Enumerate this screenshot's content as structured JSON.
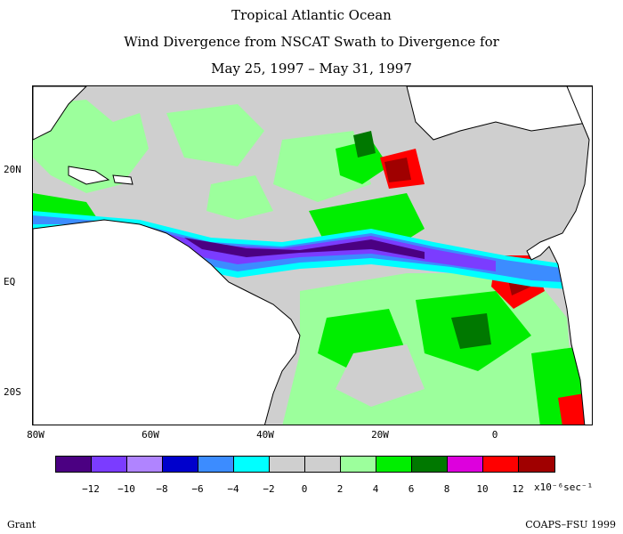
{
  "title": {
    "line1": "Tropical Atlantic Ocean",
    "line2": "Wind Divergence from NSCAT Swath to Divergence for",
    "line3": "May 25, 1997 – May 31, 1997"
  },
  "map": {
    "lat_labels": [
      "20N",
      "EQ",
      "20S"
    ],
    "lon_labels": [
      "80W",
      "60W",
      "40W",
      "20W",
      "0"
    ]
  },
  "legend": {
    "colors": [
      "#4b0082",
      "#7b3cff",
      "#b084ff",
      "#0000cc",
      "#3c8cff",
      "#00ffff",
      "#cfcfcf",
      "#cfcfcf",
      "#9cff9c",
      "#00ee00",
      "#007800",
      "#dd00dd",
      "#ff0000",
      "#a00000"
    ],
    "ticks": [
      "−12",
      "−10",
      "−8",
      "−6",
      "−4",
      "−2",
      "0",
      "2",
      "4",
      "6",
      "8",
      "10",
      "12"
    ],
    "units": "x10⁻⁶sec⁻¹"
  },
  "footer": {
    "left": "Grant",
    "right": "COAPS–FSU 1999"
  }
}
